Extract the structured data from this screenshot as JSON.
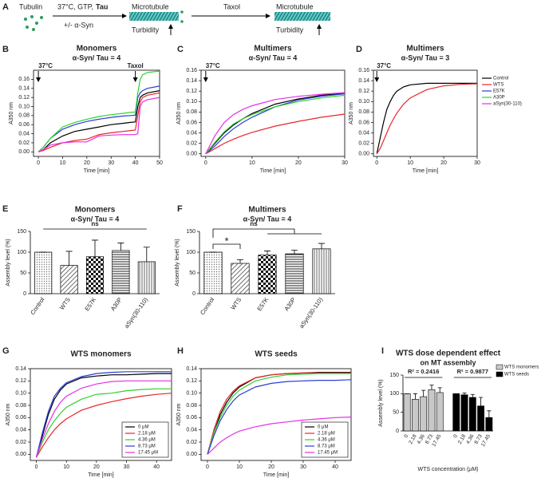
{
  "schematic": {
    "panel": "A",
    "tubulin": "Tubulin",
    "conditions": "37°C, GTP,",
    "tau": "Tau",
    "syn": "+/- α-Syn",
    "microtubule_1": "Microtubule",
    "turbidity_1": "Turbidity",
    "taxol": "Taxol",
    "microtubule_2": "Microtubule",
    "turbidity_2": "Turbidity"
  },
  "chart_data": [
    {
      "type": "line",
      "panel": "B",
      "title": "Monomers",
      "subtitle": "α-Syn/ Tau = 4",
      "x_label": "Time [min]",
      "y_label": "A350 nm",
      "annotations": [
        "37°C",
        "Taxol"
      ],
      "xlim": [
        -2,
        50
      ],
      "xticks": [
        0,
        10,
        20,
        30,
        40,
        50
      ],
      "ylim": [
        -0.01,
        0.18
      ],
      "yticks": [
        {
          "value": 0,
          "label": "0.00"
        },
        {
          "value": 0.02,
          "label": "0.02"
        },
        {
          "value": 0.04,
          "label": "0.04"
        },
        {
          "value": 0.06,
          "label": "0.06"
        },
        {
          "value": 0.08,
          "label": "0.08"
        },
        {
          "value": 0.1,
          "label": "0.10"
        },
        {
          "value": 0.12,
          "label": "0.12"
        },
        {
          "value": 0.14,
          "label": "0.14"
        },
        {
          "value": 0.16,
          "label": "0.16"
        }
      ],
      "x": [
        0,
        2,
        5,
        10,
        15,
        20,
        25,
        30,
        35,
        38,
        40,
        41,
        42,
        43,
        45,
        50
      ],
      "series": [
        {
          "color": "#000000",
          "values": [
            0,
            0.005,
            0.02,
            0.035,
            0.045,
            0.05,
            0.055,
            0.06,
            0.063,
            0.065,
            0.066,
            0.1,
            0.12,
            0.125,
            0.13,
            0.135
          ]
        },
        {
          "color": "#e8262a",
          "values": [
            0,
            0.003,
            0.01,
            0.02,
            0.025,
            0.028,
            0.038,
            0.042,
            0.045,
            0.047,
            0.048,
            0.08,
            0.11,
            0.12,
            0.125,
            0.13
          ]
        },
        {
          "color": "#2a3dd6",
          "values": [
            0,
            0.01,
            0.03,
            0.05,
            0.06,
            0.067,
            0.072,
            0.076,
            0.079,
            0.08,
            0.081,
            0.12,
            0.13,
            0.135,
            0.14,
            0.145
          ]
        },
        {
          "color": "#2ed12e",
          "values": [
            0,
            0.01,
            0.03,
            0.055,
            0.065,
            0.072,
            0.078,
            0.082,
            0.085,
            0.087,
            0.088,
            0.13,
            0.16,
            0.17,
            0.175,
            0.178
          ]
        },
        {
          "color": "#e62ee6",
          "values": [
            0,
            0.005,
            0.015,
            0.02,
            0.022,
            0.022,
            0.035,
            0.037,
            0.038,
            0.038,
            0.038,
            0.04,
            0.1,
            0.11,
            0.115,
            0.12
          ]
        }
      ]
    },
    {
      "type": "line",
      "panel": "C",
      "title": "Multimers",
      "subtitle": "α-Syn/ Tau = 4",
      "x_label": "Time [min]",
      "y_label": "A350 nm",
      "annotations": [
        "37°C"
      ],
      "xlim": [
        -1,
        30
      ],
      "xticks": [
        0,
        10,
        20,
        30
      ],
      "ylim": [
        -0.005,
        0.16
      ],
      "yticks": [
        {
          "value": 0,
          "label": "0.00"
        },
        {
          "value": 0.02,
          "label": "0.02"
        },
        {
          "value": 0.04,
          "label": "0.04"
        },
        {
          "value": 0.06,
          "label": "0.06"
        },
        {
          "value": 0.08,
          "label": "0.08"
        },
        {
          "value": 0.1,
          "label": "0.10"
        },
        {
          "value": 0.12,
          "label": "0.12"
        },
        {
          "value": 0.14,
          "label": "0.14"
        },
        {
          "value": 0.16,
          "label": "0.16"
        }
      ],
      "x": [
        0,
        2,
        4,
        6,
        8,
        10,
        15,
        20,
        25,
        30
      ],
      "series": [
        {
          "color": "#000000",
          "values": [
            0,
            0.02,
            0.04,
            0.055,
            0.067,
            0.077,
            0.095,
            0.105,
            0.112,
            0.116
          ]
        },
        {
          "color": "#e8262a",
          "values": [
            0,
            0.01,
            0.02,
            0.028,
            0.035,
            0.041,
            0.053,
            0.062,
            0.07,
            0.076
          ]
        },
        {
          "color": "#2a3dd6",
          "values": [
            0,
            0.015,
            0.033,
            0.048,
            0.06,
            0.07,
            0.09,
            0.103,
            0.11,
            0.115
          ]
        },
        {
          "color": "#2ed12e",
          "values": [
            0,
            0.022,
            0.042,
            0.057,
            0.067,
            0.075,
            0.09,
            0.1,
            0.107,
            0.112
          ]
        },
        {
          "color": "#e62ee6",
          "values": [
            0,
            0.035,
            0.06,
            0.075,
            0.085,
            0.092,
            0.104,
            0.11,
            0.114,
            0.117
          ]
        }
      ]
    },
    {
      "type": "line",
      "panel": "D",
      "title": "Multimers",
      "subtitle": "α-Syn/ Tau = 3",
      "x_label": "Time [min]",
      "y_label": "A350 nm",
      "annotations": [
        "37°C"
      ],
      "xlim": [
        -1,
        30
      ],
      "xticks": [
        0,
        10,
        20,
        30
      ],
      "ylim": [
        -0.005,
        0.16
      ],
      "yticks": [
        {
          "value": 0,
          "label": "0.00"
        },
        {
          "value": 0.02,
          "label": "0.02"
        },
        {
          "value": 0.04,
          "label": "0.04"
        },
        {
          "value": 0.06,
          "label": "0.06"
        },
        {
          "value": 0.08,
          "label": "0.08"
        },
        {
          "value": 0.1,
          "label": "0.10"
        },
        {
          "value": 0.12,
          "label": "0.12"
        },
        {
          "value": 0.14,
          "label": "0.14"
        },
        {
          "value": 0.16,
          "label": "0.16"
        }
      ],
      "x": [
        0,
        1,
        2,
        3,
        4,
        5,
        6,
        8,
        10,
        15,
        20,
        25,
        30
      ],
      "series": [
        {
          "color": "#000000",
          "values": [
            0,
            0.03,
            0.06,
            0.085,
            0.1,
            0.112,
            0.12,
            0.128,
            0.132,
            0.135,
            0.135,
            0.135,
            0.135
          ]
        },
        {
          "color": "#e8262a",
          "values": [
            0,
            0.01,
            0.025,
            0.04,
            0.055,
            0.067,
            0.078,
            0.095,
            0.107,
            0.123,
            0.13,
            0.133,
            0.134
          ]
        }
      ],
      "legend": [
        {
          "name": "Control",
          "color": "#000000"
        },
        {
          "name": "WTS",
          "color": "#e8262a"
        },
        {
          "name": "E57K",
          "color": "#2a3dd6"
        },
        {
          "name": "A30P",
          "color": "#2ed12e"
        },
        {
          "name": "aSyn(30-110)",
          "color": "#e62ee6"
        }
      ]
    },
    {
      "type": "bar",
      "panel": "E",
      "title": "Monomers",
      "subtitle": "α-Syn/ Tau = 4",
      "y_label": "Assembly level (%)",
      "annotations": [
        "ns"
      ],
      "categories": [
        "Control",
        "WTS",
        "E57K",
        "A30P",
        "aSyn(30-110)"
      ],
      "values": [
        100,
        68,
        89,
        104,
        77
      ],
      "errors": [
        0,
        34,
        40,
        18,
        35
      ],
      "ylim": [
        0,
        150
      ],
      "yticks": [
        0,
        50,
        100,
        150
      ]
    },
    {
      "type": "bar",
      "panel": "F",
      "title": "Multimers",
      "subtitle": "α-Syn/ Tau = 4",
      "y_label": "Assembly level (%)",
      "annotations": [
        "*",
        "ns"
      ],
      "categories": [
        "Control",
        "WTS",
        "E57K",
        "A30P",
        "aSyn(30-110)"
      ],
      "values": [
        100,
        73,
        93,
        96,
        108
      ],
      "errors": [
        0,
        9,
        10,
        9,
        13
      ],
      "ylim": [
        0,
        150
      ],
      "yticks": [
        0,
        50,
        100,
        150
      ]
    },
    {
      "type": "line",
      "panel": "G",
      "title": "WTS monomers",
      "x_label": "Time [min]",
      "y_label": "A350 nm",
      "xlim": [
        -2,
        45
      ],
      "xticks": [
        0,
        10,
        20,
        30,
        40
      ],
      "ylim": [
        -0.01,
        0.14
      ],
      "yticks": [
        {
          "value": 0,
          "label": "0.00"
        },
        {
          "value": 0.02,
          "label": "0.02"
        },
        {
          "value": 0.04,
          "label": "0.04"
        },
        {
          "value": 0.06,
          "label": "0.06"
        },
        {
          "value": 0.08,
          "label": "0.08"
        },
        {
          "value": 0.1,
          "label": "0.10"
        },
        {
          "value": 0.12,
          "label": "0.12"
        },
        {
          "value": 0.14,
          "label": "0.14"
        }
      ],
      "x": [
        0,
        2,
        4,
        6,
        8,
        10,
        15,
        20,
        25,
        30,
        35,
        40,
        45
      ],
      "series": [
        {
          "name": "0 μM",
          "color": "#000000",
          "values": [
            -0.005,
            0.03,
            0.065,
            0.09,
            0.105,
            0.115,
            0.125,
            0.128,
            0.13,
            0.13,
            0.131,
            0.132,
            0.132
          ]
        },
        {
          "name": "2.18 μM",
          "color": "#e8262a",
          "values": [
            -0.005,
            0.012,
            0.027,
            0.04,
            0.05,
            0.058,
            0.072,
            0.08,
            0.086,
            0.091,
            0.095,
            0.098,
            0.1
          ]
        },
        {
          "name": "4.36 μM",
          "color": "#2ed12e",
          "values": [
            -0.005,
            0.02,
            0.04,
            0.055,
            0.067,
            0.077,
            0.09,
            0.098,
            0.1,
            0.104,
            0.106,
            0.107,
            0.107
          ]
        },
        {
          "name": "8.73 μM",
          "color": "#2a3dd6",
          "values": [
            -0.005,
            0.035,
            0.07,
            0.095,
            0.108,
            0.117,
            0.127,
            0.132,
            0.134,
            0.135,
            0.135,
            0.135,
            0.135
          ]
        },
        {
          "name": "17.45 μM",
          "color": "#e62ee6",
          "values": [
            -0.005,
            0.025,
            0.05,
            0.07,
            0.085,
            0.095,
            0.108,
            0.115,
            0.119,
            0.12,
            0.12,
            0.12,
            0.12
          ]
        }
      ]
    },
    {
      "type": "line",
      "panel": "H",
      "title": "WTS seeds",
      "x_label": "Time [min]",
      "y_label": "A350 nm",
      "xlim": [
        -2,
        45
      ],
      "xticks": [
        0,
        10,
        20,
        30,
        40
      ],
      "ylim": [
        -0.01,
        0.14
      ],
      "yticks": [
        {
          "value": 0,
          "label": "0.00"
        },
        {
          "value": 0.02,
          "label": "0.02"
        },
        {
          "value": 0.04,
          "label": "0.04"
        },
        {
          "value": 0.06,
          "label": "0.06"
        },
        {
          "value": 0.08,
          "label": "0.08"
        },
        {
          "value": 0.1,
          "label": "0.10"
        },
        {
          "value": 0.12,
          "label": "0.12"
        },
        {
          "value": 0.14,
          "label": "0.14"
        }
      ],
      "x": [
        0,
        2,
        4,
        6,
        8,
        10,
        15,
        20,
        25,
        30,
        35,
        40,
        45
      ],
      "series": [
        {
          "name": "0 μM",
          "color": "#000000",
          "values": [
            0,
            0.035,
            0.065,
            0.085,
            0.1,
            0.11,
            0.125,
            0.13,
            0.132,
            0.133,
            0.134,
            0.134,
            0.134
          ]
        },
        {
          "name": "2.18 μM",
          "color": "#e8262a",
          "values": [
            0,
            0.04,
            0.07,
            0.09,
            0.103,
            0.112,
            0.125,
            0.13,
            0.132,
            0.133,
            0.133,
            0.133,
            0.133
          ]
        },
        {
          "name": "4.36 μM",
          "color": "#2ed12e",
          "values": [
            0,
            0.035,
            0.06,
            0.08,
            0.095,
            0.105,
            0.12,
            0.126,
            0.13,
            0.131,
            0.132,
            0.132,
            0.132
          ]
        },
        {
          "name": "8.73 μM",
          "color": "#2a3dd6",
          "values": [
            0,
            0.03,
            0.055,
            0.073,
            0.087,
            0.097,
            0.11,
            0.116,
            0.119,
            0.12,
            0.121,
            0.121,
            0.122
          ]
        },
        {
          "name": "17.45 μM",
          "color": "#e62ee6",
          "values": [
            0,
            0.01,
            0.02,
            0.027,
            0.033,
            0.038,
            0.045,
            0.05,
            0.053,
            0.056,
            0.058,
            0.06,
            0.061
          ]
        }
      ]
    },
    {
      "type": "grouped_bar",
      "panel": "I",
      "title": "WTS dose dependent effect",
      "subtitle": "on MT assembly",
      "x_label": "WTS concentration (μM)",
      "y_label": "Assembly level (%)",
      "annotations": [
        "R² = 0.2416",
        "R² = 0.9877"
      ],
      "categories": [
        "0",
        "2.18",
        "4.36",
        "8.73",
        "17.45"
      ],
      "ylim": [
        0,
        150
      ],
      "yticks": [
        0,
        50,
        100,
        150
      ],
      "series": [
        {
          "name": "WTS monomers",
          "color": "#c8c8c8",
          "values": [
            100,
            85,
            92,
            111,
            103
          ],
          "errors": [
            0,
            15,
            17,
            12,
            13
          ]
        },
        {
          "name": "WTS seeds",
          "color": "#000000",
          "values": [
            100,
            97,
            90,
            67,
            36
          ],
          "errors": [
            0,
            5,
            8,
            23,
            18
          ]
        }
      ]
    }
  ]
}
